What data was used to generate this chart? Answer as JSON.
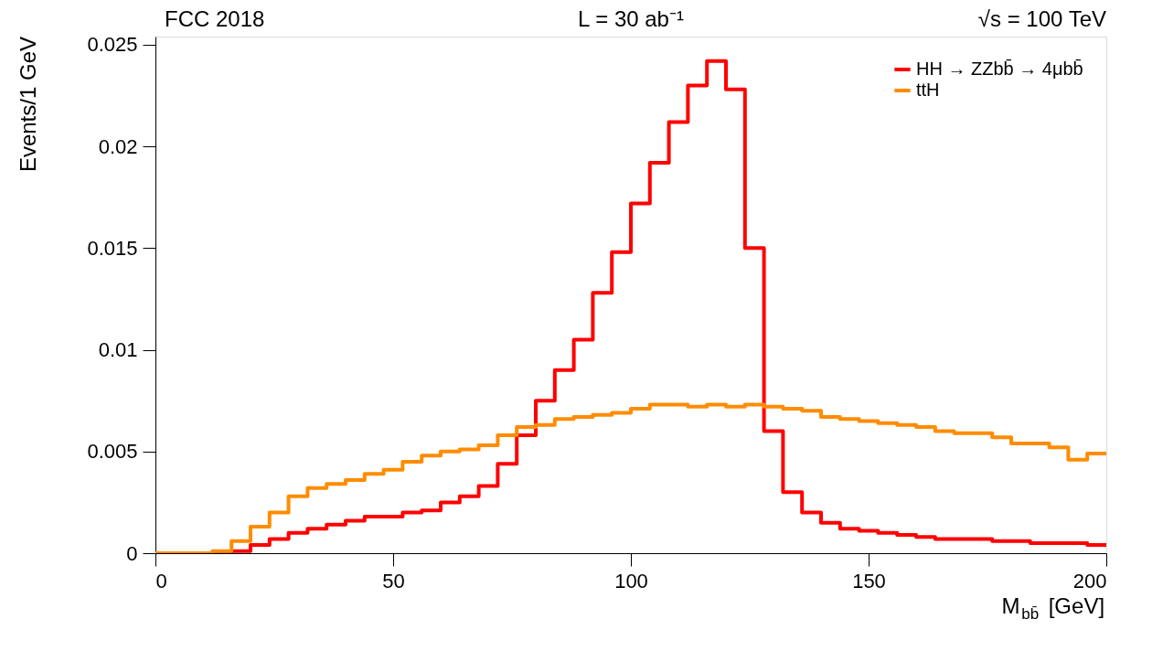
{
  "chart_data": {
    "type": "histogram",
    "title": "FCC 2018",
    "xlabel": "M$_{bb̄}$ [GeV]",
    "ylabel": "Events/1 GeV",
    "annotations": [
      "L = 30 ab⁻¹",
      "√s = 100 TeV"
    ],
    "bins": [
      0,
      4,
      8,
      12,
      16,
      20,
      24,
      28,
      32,
      36,
      40,
      44,
      48,
      52,
      56,
      60,
      64,
      68,
      72,
      76,
      80,
      84,
      88,
      92,
      96,
      100,
      104,
      108,
      112,
      116,
      120,
      124,
      128,
      132,
      136,
      140,
      144,
      148,
      152,
      156,
      160,
      164,
      168,
      172,
      176,
      180,
      184,
      188,
      192,
      196,
      200
    ],
    "series": [
      {
        "name": "HH → ZZbb̄ → 4μbb̄",
        "color": "#ff0000",
        "values": [
          0,
          0,
          0,
          0,
          0.0001,
          0.0004,
          0.0007,
          0.001,
          0.0012,
          0.0014,
          0.0016,
          0.0018,
          0.0018,
          0.002,
          0.0021,
          0.0025,
          0.0028,
          0.0033,
          0.0044,
          0.0058,
          0.0075,
          0.009,
          0.0105,
          0.0128,
          0.0148,
          0.0172,
          0.0192,
          0.0212,
          0.023,
          0.0242,
          0.0228,
          0.015,
          0.006,
          0.003,
          0.002,
          0.0015,
          0.0012,
          0.0011,
          0.001,
          0.0009,
          0.0008,
          0.0007,
          0.0007,
          0.0007,
          0.0006,
          0.0006,
          0.0005,
          0.0005,
          0.0005,
          0.0004
        ]
      },
      {
        "name": "ttH",
        "color": "#ff8c00",
        "values": [
          0,
          0,
          0,
          0.0001,
          0.0006,
          0.0013,
          0.002,
          0.0028,
          0.0032,
          0.0034,
          0.0036,
          0.0039,
          0.0041,
          0.0045,
          0.0048,
          0.005,
          0.0051,
          0.0053,
          0.0058,
          0.0062,
          0.0063,
          0.0066,
          0.0067,
          0.0068,
          0.0069,
          0.0071,
          0.0073,
          0.0073,
          0.0072,
          0.0073,
          0.0072,
          0.0073,
          0.0072,
          0.0071,
          0.007,
          0.0067,
          0.0066,
          0.0065,
          0.0064,
          0.0063,
          0.0062,
          0.006,
          0.0059,
          0.0059,
          0.0057,
          0.0054,
          0.0054,
          0.0052,
          0.0046,
          0.0049
        ]
      }
    ],
    "xlim": [
      0,
      200
    ],
    "xticks": [
      0,
      50,
      100,
      150,
      200
    ],
    "ylim": [
      0,
      0.0254
    ],
    "yticks": [
      0,
      0.005,
      0.01,
      0.015,
      0.02,
      0.025
    ],
    "grid": false,
    "legend": "top right",
    "line_style": "solid"
  }
}
